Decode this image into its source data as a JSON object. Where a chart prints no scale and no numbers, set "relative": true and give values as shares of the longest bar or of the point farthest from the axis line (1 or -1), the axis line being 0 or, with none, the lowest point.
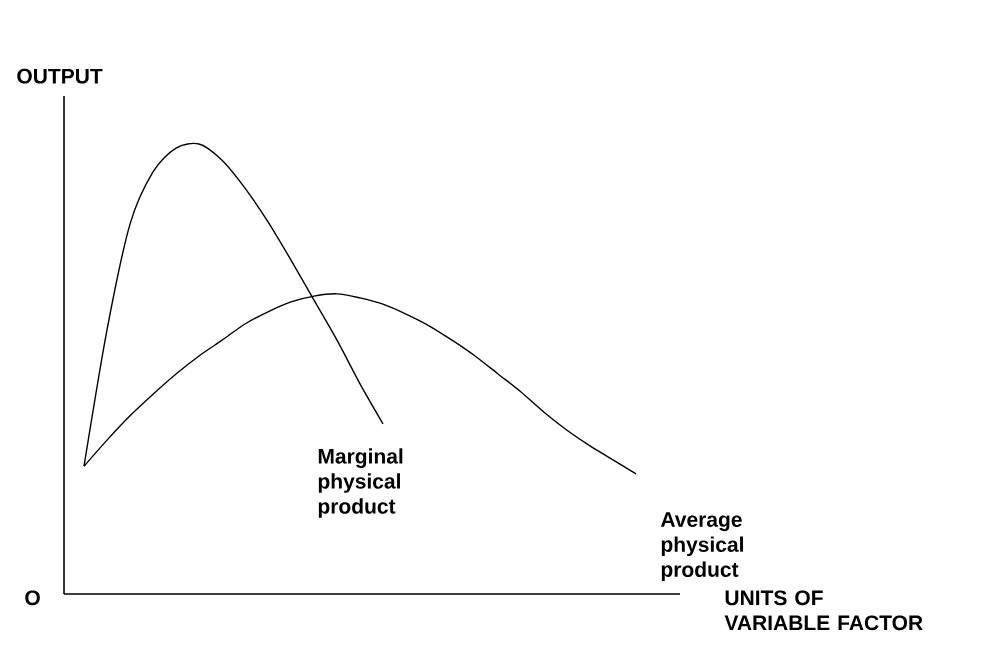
{
  "chart_data": {
    "type": "line",
    "relative": true,
    "xlabel": "UNITS OF VARIABLE FACTOR",
    "ylabel": "OUTPUT",
    "annotations": [
      "O"
    ],
    "marker": "none",
    "line_style": "solid",
    "categories": [
      null,
      null,
      null,
      null,
      null,
      null,
      null,
      null,
      null,
      null,
      null,
      null,
      null,
      null,
      null,
      null,
      null,
      null,
      null,
      null,
      null,
      null,
      null,
      null,
      null
    ],
    "series": [
      {
        "name": "Marginal physical product",
        "color": "#000000",
        "values": [
          0.284,
          0.587,
          0.822,
          0.938,
          0.991,
          1.0,
          0.964,
          0.902,
          0.827,
          0.742,
          0.653,
          0.564,
          0.467,
          0.378,
          null,
          null,
          null,
          null,
          null,
          null,
          null,
          null,
          null,
          null,
          null
        ]
      },
      {
        "name": "Average physical product",
        "color": "#000000",
        "values": [
          0.284,
          0.342,
          0.396,
          0.444,
          0.489,
          0.529,
          0.564,
          0.6,
          0.627,
          0.649,
          0.662,
          0.667,
          0.658,
          0.644,
          0.622,
          0.596,
          0.564,
          0.529,
          0.489,
          0.449,
          0.404,
          0.364,
          0.329,
          0.298,
          0.267
        ]
      }
    ]
  }
}
